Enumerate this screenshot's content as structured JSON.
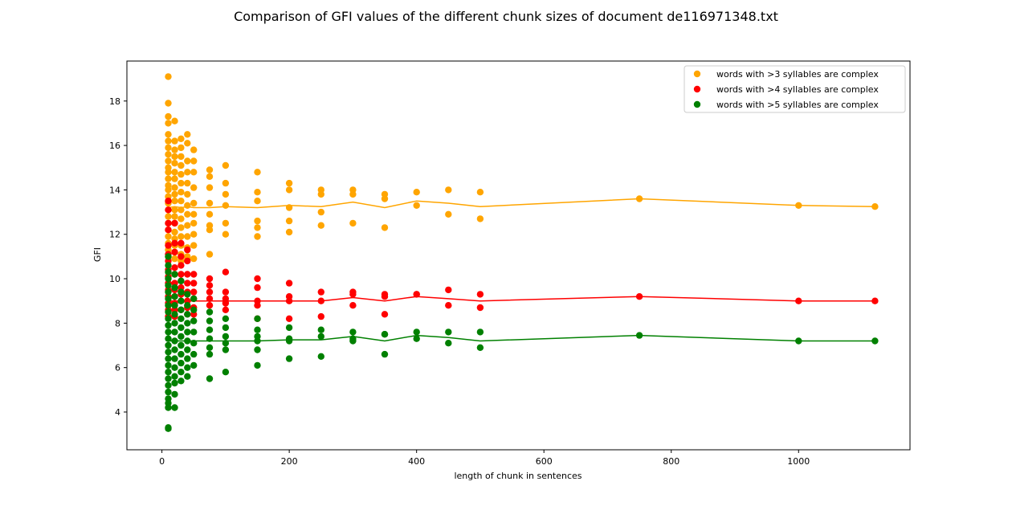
{
  "chart_data": {
    "type": "scatter",
    "title": "Comparison of GFI values of the different chunk sizes of document de116971348.txt",
    "xlabel": "length of chunk in sentences",
    "ylabel": "GFI",
    "xlim": [
      -55,
      1175
    ],
    "ylim": [
      2.3,
      19.8
    ],
    "xticks": [
      0,
      200,
      400,
      600,
      800,
      1000
    ],
    "yticks": [
      4,
      6,
      8,
      10,
      12,
      14,
      16,
      18
    ],
    "grid": false,
    "legend_position": "top-right",
    "series": [
      {
        "name": "words with >3 syllables are complex",
        "color": "#ffa500",
        "mean_line": {
          "x": [
            10,
            20,
            30,
            40,
            50,
            75,
            100,
            150,
            200,
            250,
            300,
            350,
            400,
            450,
            500,
            750,
            1000,
            1120
          ],
          "y": [
            13.2,
            13.25,
            13.2,
            13.25,
            13.2,
            13.2,
            13.25,
            13.2,
            13.3,
            13.25,
            13.45,
            13.2,
            13.5,
            13.4,
            13.25,
            13.6,
            13.3,
            13.25
          ]
        },
        "points": {
          "x": [
            10,
            10,
            10,
            10,
            10,
            10,
            10,
            10,
            10,
            10,
            10,
            10,
            10,
            10,
            10,
            10,
            10,
            10,
            10,
            10,
            10,
            10,
            10,
            10,
            10,
            20,
            20,
            20,
            20,
            20,
            20,
            20,
            20,
            20,
            20,
            20,
            20,
            20,
            20,
            20,
            20,
            20,
            20,
            30,
            30,
            30,
            30,
            30,
            30,
            30,
            30,
            30,
            30,
            30,
            30,
            30,
            30,
            30,
            40,
            40,
            40,
            40,
            40,
            40,
            40,
            40,
            40,
            40,
            40,
            40,
            40,
            50,
            50,
            50,
            50,
            50,
            50,
            50,
            50,
            50,
            50,
            75,
            75,
            75,
            75,
            75,
            75,
            75,
            75,
            100,
            100,
            100,
            100,
            100,
            100,
            150,
            150,
            150,
            150,
            150,
            150,
            200,
            200,
            200,
            200,
            200,
            250,
            250,
            250,
            250,
            300,
            300,
            300,
            350,
            350,
            350,
            400,
            400,
            450,
            450,
            500,
            500,
            750,
            1000,
            1120
          ],
          "y": [
            19.1,
            17.9,
            17.3,
            17.0,
            16.5,
            16.2,
            15.9,
            15.6,
            15.3,
            15.0,
            14.8,
            14.5,
            14.2,
            14.0,
            13.7,
            13.4,
            13.1,
            12.8,
            12.5,
            12.2,
            11.9,
            11.6,
            11.3,
            11.0,
            13.5,
            17.1,
            16.2,
            15.8,
            15.5,
            15.2,
            14.8,
            14.5,
            14.1,
            13.8,
            13.5,
            13.1,
            12.8,
            12.5,
            12.1,
            11.8,
            11.5,
            11.2,
            10.9,
            16.3,
            15.9,
            15.5,
            15.1,
            14.7,
            14.3,
            13.9,
            13.5,
            13.1,
            12.7,
            12.3,
            11.9,
            11.5,
            11.1,
            10.8,
            16.5,
            16.1,
            15.3,
            14.8,
            14.3,
            13.8,
            13.3,
            12.9,
            12.4,
            11.9,
            11.4,
            11.0,
            10.9,
            15.8,
            15.3,
            14.8,
            14.1,
            13.4,
            12.9,
            12.5,
            12.0,
            11.5,
            10.9,
            14.9,
            14.6,
            14.1,
            13.4,
            12.9,
            12.4,
            12.2,
            11.1,
            15.1,
            14.3,
            13.8,
            13.3,
            12.5,
            12.0,
            14.8,
            13.9,
            13.5,
            12.6,
            12.3,
            11.9,
            14.3,
            14.0,
            13.2,
            12.6,
            12.1,
            14.0,
            13.8,
            13.0,
            12.4,
            14.0,
            13.8,
            12.5,
            13.8,
            13.6,
            12.3,
            13.9,
            13.3,
            14.0,
            12.9,
            13.9,
            12.7,
            13.6,
            13.3,
            13.25
          ]
        }
      },
      {
        "name": "words with >4 syllables are complex",
        "color": "#ff0000",
        "mean_line": {
          "x": [
            10,
            20,
            30,
            40,
            50,
            75,
            100,
            150,
            200,
            250,
            300,
            350,
            400,
            450,
            500,
            750,
            1000,
            1120
          ],
          "y": [
            9.0,
            9.0,
            9.0,
            9.0,
            9.0,
            9.0,
            9.0,
            9.0,
            9.0,
            9.0,
            9.15,
            9.0,
            9.2,
            9.1,
            9.0,
            9.2,
            9.0,
            9.0
          ]
        },
        "points": {
          "x": [
            10,
            10,
            10,
            10,
            10,
            10,
            10,
            10,
            10,
            10,
            10,
            10,
            10,
            10,
            10,
            20,
            20,
            20,
            20,
            20,
            20,
            20,
            20,
            20,
            20,
            20,
            30,
            30,
            30,
            30,
            30,
            30,
            30,
            30,
            30,
            40,
            40,
            40,
            40,
            40,
            40,
            40,
            40,
            50,
            50,
            50,
            50,
            50,
            50,
            75,
            75,
            75,
            75,
            75,
            100,
            100,
            100,
            100,
            100,
            150,
            150,
            150,
            150,
            150,
            200,
            200,
            200,
            200,
            250,
            250,
            250,
            300,
            300,
            300,
            350,
            350,
            350,
            400,
            400,
            450,
            450,
            500,
            500,
            750,
            1000,
            1120
          ],
          "y": [
            13.5,
            13.1,
            12.5,
            12.2,
            11.5,
            11.1,
            10.8,
            10.4,
            10.1,
            9.8,
            9.5,
            9.2,
            8.9,
            8.6,
            8.3,
            12.5,
            11.6,
            11.2,
            10.5,
            10.2,
            9.8,
            9.5,
            9.2,
            8.9,
            8.6,
            8.3,
            11.6,
            11.0,
            10.6,
            10.2,
            9.9,
            9.6,
            9.3,
            9.0,
            8.6,
            11.3,
            10.8,
            10.2,
            9.8,
            9.4,
            9.0,
            8.7,
            8.4,
            10.2,
            9.8,
            9.4,
            9.1,
            8.7,
            8.4,
            10.0,
            9.7,
            9.4,
            9.1,
            8.8,
            10.3,
            9.4,
            9.1,
            8.9,
            8.6,
            10.0,
            9.6,
            9.0,
            8.8,
            8.2,
            9.8,
            9.2,
            9.0,
            8.2,
            9.4,
            9.0,
            8.3,
            9.4,
            9.3,
            8.8,
            9.3,
            9.2,
            8.4,
            9.3,
            9.3,
            9.5,
            8.8,
            9.3,
            8.7,
            9.2,
            9.0,
            9.0
          ]
        }
      },
      {
        "name": "words with >5 syllables are complex",
        "color": "#008000",
        "mean_line": {
          "x": [
            10,
            20,
            30,
            40,
            50,
            75,
            100,
            150,
            200,
            250,
            300,
            350,
            400,
            450,
            500,
            750,
            1000,
            1120
          ],
          "y": [
            7.2,
            7.2,
            7.2,
            7.2,
            7.2,
            7.2,
            7.2,
            7.2,
            7.25,
            7.25,
            7.4,
            7.2,
            7.45,
            7.35,
            7.2,
            7.45,
            7.2,
            7.2
          ]
        },
        "points": {
          "x": [
            10,
            10,
            10,
            10,
            10,
            10,
            10,
            10,
            10,
            10,
            10,
            10,
            10,
            10,
            10,
            10,
            10,
            10,
            10,
            10,
            10,
            10,
            10,
            10,
            10,
            10,
            20,
            20,
            20,
            20,
            20,
            20,
            20,
            20,
            20,
            20,
            20,
            20,
            20,
            20,
            20,
            30,
            30,
            30,
            30,
            30,
            30,
            30,
            30,
            30,
            30,
            30,
            30,
            40,
            40,
            40,
            40,
            40,
            40,
            40,
            40,
            40,
            40,
            50,
            50,
            50,
            50,
            50,
            50,
            50,
            75,
            75,
            75,
            75,
            75,
            75,
            75,
            100,
            100,
            100,
            100,
            100,
            100,
            150,
            150,
            150,
            150,
            150,
            150,
            200,
            200,
            200,
            200,
            250,
            250,
            250,
            300,
            300,
            300,
            350,
            350,
            350,
            400,
            400,
            450,
            450,
            500,
            500,
            750,
            1000,
            1120
          ],
          "y": [
            11.0,
            10.6,
            10.3,
            10.0,
            9.7,
            9.4,
            9.1,
            8.8,
            8.5,
            8.2,
            7.9,
            7.6,
            7.3,
            7.0,
            6.7,
            6.4,
            6.1,
            5.8,
            5.5,
            5.2,
            4.9,
            4.6,
            4.4,
            4.2,
            3.3,
            3.25,
            10.2,
            9.6,
            9.2,
            8.8,
            8.4,
            8.0,
            7.6,
            7.2,
            6.8,
            6.4,
            6.0,
            5.6,
            5.3,
            4.8,
            4.2,
            9.9,
            9.4,
            9.0,
            8.6,
            8.2,
            7.8,
            7.4,
            7.0,
            6.6,
            6.2,
            5.8,
            5.4,
            9.3,
            8.8,
            8.4,
            8.0,
            7.6,
            7.2,
            6.8,
            6.4,
            6.0,
            5.6,
            9.1,
            8.6,
            8.1,
            7.6,
            7.1,
            6.6,
            6.1,
            8.5,
            8.1,
            7.7,
            7.3,
            6.9,
            6.6,
            5.5,
            8.2,
            7.8,
            7.4,
            7.1,
            6.8,
            5.8,
            8.2,
            7.7,
            7.4,
            7.2,
            6.8,
            6.1,
            7.8,
            7.3,
            7.2,
            6.4,
            7.7,
            7.4,
            6.5,
            7.6,
            7.3,
            7.2,
            7.5,
            7.5,
            6.6,
            7.6,
            7.3,
            7.6,
            7.1,
            7.6,
            6.9,
            7.45,
            7.2,
            7.2
          ]
        }
      }
    ]
  }
}
